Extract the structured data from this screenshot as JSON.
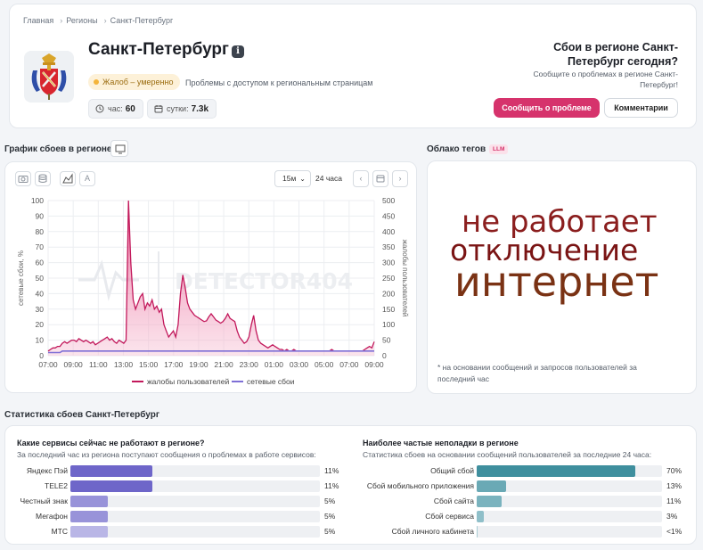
{
  "breadcrumb": [
    "Главная",
    "Регионы",
    "Санкт-Петербург"
  ],
  "header": {
    "title": "Санкт-Петербург",
    "status_badge": "Жалоб – умеренно",
    "status_desc": "Проблемы с доступом к региональным страницам",
    "hour_label": "час:",
    "hour_value": "60",
    "day_label": "сутки:",
    "day_value": "7.3k",
    "right_title": "Сбои в регионе Санкт-Петербург сегодня?",
    "right_sub": "Сообщите о проблемах в регионе Санкт-Петербург!",
    "report_button": "Сообщить о проблеме",
    "comments_button": "Комментарии"
  },
  "chart_section": {
    "title": "График сбоев в регионе",
    "interval": "15м",
    "period": "24 часа",
    "watermark": "DETECTOR404"
  },
  "chart_data": {
    "type": "area",
    "x_ticks": [
      "07:00",
      "09:00",
      "11:00",
      "13:00",
      "15:00",
      "17:00",
      "19:00",
      "21:00",
      "23:00",
      "01:00",
      "03:00",
      "05:00",
      "07:00",
      "09:00"
    ],
    "ylabel_left": "сетевые сбои, %",
    "ylabel_right": "жалобы пользователей",
    "ylim_left": [
      0,
      100
    ],
    "ylim_right": [
      0,
      500
    ],
    "y_ticks_left": [
      0,
      10,
      20,
      30,
      40,
      50,
      60,
      70,
      80,
      90,
      100
    ],
    "y_ticks_right": [
      0,
      50,
      100,
      150,
      200,
      250,
      300,
      350,
      400,
      450,
      500
    ],
    "grid": true,
    "legend_position": "bottom",
    "series": [
      {
        "name": "жалобы пользователей",
        "axis": "right",
        "color": "#c2185b",
        "values": [
          15,
          20,
          25,
          25,
          30,
          30,
          40,
          45,
          40,
          45,
          50,
          50,
          45,
          55,
          50,
          45,
          50,
          45,
          40,
          45,
          35,
          40,
          45,
          50,
          55,
          60,
          50,
          55,
          45,
          40,
          50,
          45,
          40,
          50,
          500,
          300,
          180,
          150,
          170,
          190,
          200,
          150,
          170,
          160,
          180,
          150,
          160,
          140,
          150,
          100,
          80,
          60,
          70,
          80,
          60,
          100,
          200,
          260,
          220,
          170,
          150,
          140,
          130,
          125,
          120,
          115,
          110,
          112,
          125,
          135,
          125,
          115,
          110,
          105,
          110,
          120,
          135,
          120,
          115,
          110,
          80,
          60,
          50,
          40,
          45,
          60,
          100,
          130,
          80,
          50,
          40,
          35,
          30,
          25,
          30,
          35,
          30,
          25,
          20,
          20,
          15,
          20,
          15,
          15,
          20,
          15,
          15,
          15,
          15,
          15,
          15,
          15,
          15,
          15,
          15,
          15,
          15,
          15,
          15,
          15,
          20,
          15,
          15,
          15,
          15,
          15,
          15,
          15,
          15,
          15,
          15,
          15,
          15,
          15,
          20,
          25,
          30,
          25,
          45
        ]
      },
      {
        "name": "сетевые сбои",
        "axis": "left",
        "color": "#7e6fd6",
        "values": [
          2,
          2,
          2,
          2,
          2,
          2,
          3,
          3,
          3,
          3,
          3,
          3,
          3,
          3,
          3,
          3,
          3,
          3,
          3,
          3,
          3,
          3,
          3,
          3,
          3,
          3,
          3,
          3,
          3,
          3,
          3,
          3,
          3,
          3,
          3,
          3,
          3,
          3,
          3,
          3,
          3,
          3,
          3,
          3,
          3,
          3,
          3,
          3,
          3,
          3,
          3,
          3,
          3,
          3,
          3,
          3,
          3,
          3,
          3,
          3,
          3,
          3,
          3,
          3,
          3,
          3,
          3,
          3,
          3,
          3,
          3,
          3,
          3,
          3,
          3,
          3,
          3,
          3,
          3,
          3,
          3,
          3,
          3,
          3,
          3,
          3,
          3,
          3,
          3,
          3,
          3,
          3,
          3,
          3,
          3,
          3,
          3,
          3,
          3,
          3,
          3,
          3,
          3,
          3,
          3,
          3,
          3,
          3,
          3,
          3,
          3,
          3,
          3,
          3,
          3,
          3,
          3,
          3,
          3,
          3,
          3,
          3,
          3,
          3,
          3,
          3,
          3,
          3,
          3,
          3,
          3,
          3,
          3,
          3,
          3,
          3,
          3,
          3,
          3
        ]
      }
    ]
  },
  "cloud": {
    "title": "Облако тегов",
    "badge": "LLM",
    "words": [
      {
        "text": "не работает",
        "color": "#8b1e1e"
      },
      {
        "text": "отключение",
        "color": "#7a1414"
      },
      {
        "text": "интернет",
        "color": "#7a3214"
      }
    ],
    "note": "* на основании сообщений и запросов пользователей за последний час"
  },
  "stats": {
    "title": "Статистика сбоев Санкт-Петербург",
    "left": {
      "title": "Какие сервисы сейчас не работают в регионе?",
      "subtitle": "За последний час из региона поступают сообщения о проблемах в работе сервисов:",
      "items": [
        {
          "label": "Яндекс Пэй",
          "value": 11,
          "pct": "11%",
          "color": "#6e66c9"
        },
        {
          "label": "TELE2",
          "value": 11,
          "pct": "11%",
          "color": "#6e66c9"
        },
        {
          "label": "Честный знак",
          "value": 5,
          "pct": "5%",
          "color": "#9893d9"
        },
        {
          "label": "Мегафон",
          "value": 5,
          "pct": "5%",
          "color": "#9893d9"
        },
        {
          "label": "МТС",
          "value": 5,
          "pct": "5%",
          "color": "#b9b6e6"
        }
      ]
    },
    "right": {
      "title": "Наиболее частые неполадки в регионе",
      "subtitle": "Статистика сбоев на основании сообщений пользователей за последние 24 часа:",
      "items": [
        {
          "label": "Общий сбой",
          "value": 70,
          "pct": "70%",
          "color": "#3f8f9e"
        },
        {
          "label": "Сбой мобильного приложения",
          "value": 13,
          "pct": "13%",
          "color": "#6aa9b5"
        },
        {
          "label": "Сбой сайта",
          "value": 11,
          "pct": "11%",
          "color": "#7ab3be"
        },
        {
          "label": "Сбой сервиса",
          "value": 3,
          "pct": "3%",
          "color": "#8fbfc9"
        },
        {
          "label": "Сбой личного кабинета",
          "value": 0.5,
          "pct": "<1%",
          "color": "#a8ccd4"
        }
      ]
    }
  }
}
